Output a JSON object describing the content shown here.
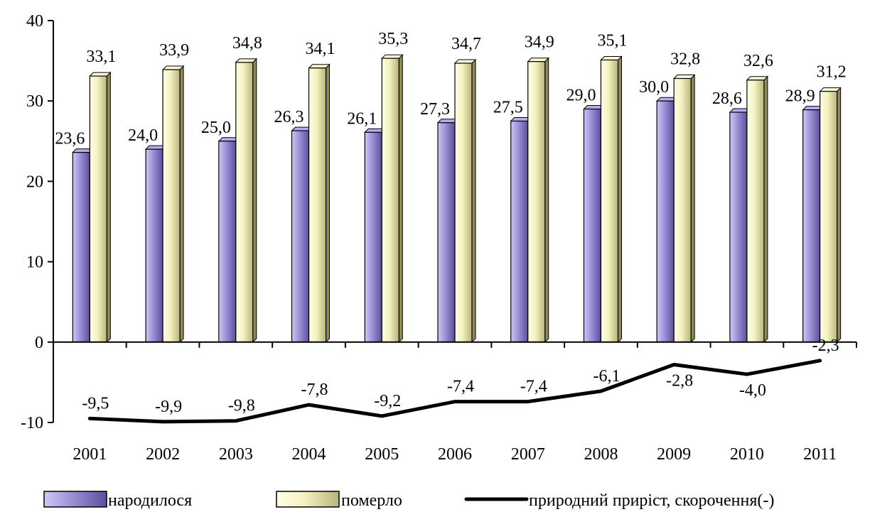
{
  "chart_data": {
    "type": "bar",
    "title": "",
    "xlabel": "",
    "ylabel": "",
    "categories": [
      "2001",
      "2002",
      "2003",
      "2004",
      "2005",
      "2006",
      "2007",
      "2008",
      "2009",
      "2010",
      "2011"
    ],
    "ylim": [
      -10,
      40
    ],
    "yticks": [
      "-10",
      "0",
      "10",
      "20",
      "30",
      "40"
    ],
    "grid": false,
    "legend_position": "bottom",
    "series": [
      {
        "name": "народилося",
        "kind": "bar",
        "color": "#9b8fd6",
        "values": [
          23.6,
          24.0,
          25.0,
          26.3,
          26.1,
          27.3,
          27.5,
          29.0,
          30.0,
          28.6,
          28.9
        ],
        "labels": [
          "23,6",
          "24,0",
          "25,0",
          "26,3",
          "26,1",
          "27,3",
          "27,5",
          "29,0",
          "30,0",
          "28,6",
          "28,9"
        ]
      },
      {
        "name": "померло",
        "kind": "bar",
        "color": "#f4f1c0",
        "values": [
          33.1,
          33.9,
          34.8,
          34.1,
          35.3,
          34.7,
          34.9,
          35.1,
          32.8,
          32.6,
          31.2
        ],
        "labels": [
          "33,1",
          "33,9",
          "34,8",
          "34,1",
          "35,3",
          "34,7",
          "34,9",
          "35,1",
          "32,8",
          "32,6",
          "31,2"
        ]
      },
      {
        "name": "природний приріст, скорочення(-)",
        "kind": "line",
        "color": "#000000",
        "values": [
          -9.5,
          -9.9,
          -9.8,
          -7.8,
          -9.2,
          -7.4,
          -7.4,
          -6.1,
          -2.8,
          -4.0,
          -2.3
        ],
        "labels": [
          "-9,5",
          "-9,9",
          "-9,8",
          "-7,8",
          "-9,2",
          "-7,4",
          "-7,4",
          "-6,1",
          "-2,8",
          "-4,0",
          "-2,3"
        ]
      }
    ]
  }
}
